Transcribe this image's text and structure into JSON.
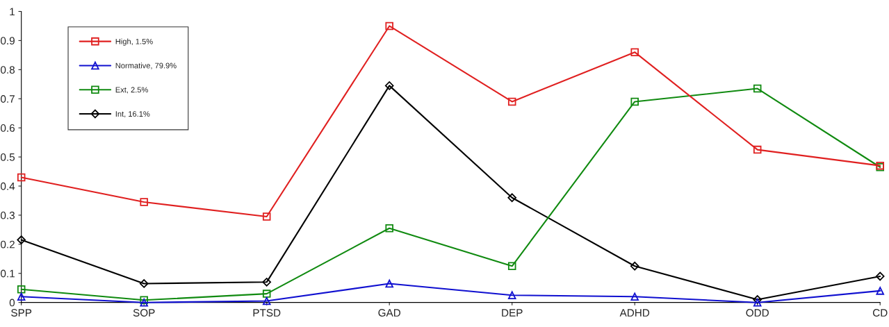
{
  "chart_data": {
    "type": "line",
    "categories": [
      "SPP",
      "SOP",
      "PTSD",
      "GAD",
      "DEP",
      "ADHD",
      "ODD",
      "CD"
    ],
    "series": [
      {
        "name": "High, 1.5%",
        "color": "#e02020",
        "marker": "square",
        "values": [
          0.43,
          0.345,
          0.295,
          0.95,
          0.69,
          0.86,
          0.525,
          0.47
        ]
      },
      {
        "name": "Normative, 79.9%",
        "color": "#1010d0",
        "marker": "triangle",
        "values": [
          0.02,
          0.0,
          0.005,
          0.065,
          0.025,
          0.02,
          0.0,
          0.04
        ]
      },
      {
        "name": "Ext, 2.5%",
        "color": "#108a10",
        "marker": "square",
        "values": [
          0.045,
          0.008,
          0.03,
          0.255,
          0.125,
          0.69,
          0.735,
          0.465
        ]
      },
      {
        "name": "Int, 16.1%",
        "color": "#000000",
        "marker": "diamond",
        "values": [
          0.215,
          0.065,
          0.07,
          0.745,
          0.36,
          0.125,
          0.01,
          0.09
        ]
      }
    ],
    "ylim": [
      0,
      1
    ],
    "yticks": [
      0,
      0.1,
      0.2,
      0.3,
      0.4,
      0.5,
      0.6,
      0.7,
      0.8,
      0.9,
      1
    ],
    "grid": false,
    "legend": "top left",
    "line_style": "solid"
  }
}
